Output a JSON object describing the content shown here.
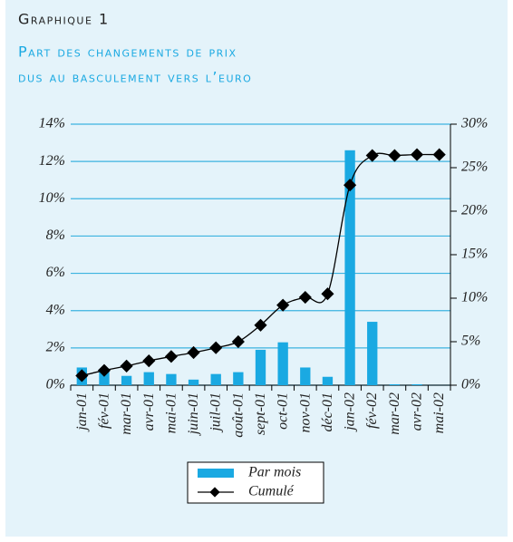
{
  "chart_data": {
    "type": "bar_line",
    "title": "Graphique 1",
    "subtitle": [
      "Part des changements de prix",
      "dus au basculement vers l’euro"
    ],
    "categories": [
      "jan-01",
      "fév-01",
      "mar-01",
      "avr-01",
      "mai-01",
      "juin-01",
      "juil-01",
      "août-01",
      "sept-01",
      "oct-01",
      "nov-01",
      "déc-01",
      "jan-02",
      "fév-02",
      "mar-02",
      "avr-02",
      "mai-02"
    ],
    "series": [
      {
        "name": "Par mois",
        "type": "bar",
        "color": "#1aa9e2",
        "axis": "y",
        "values": [
          0.95,
          0.75,
          0.5,
          0.7,
          0.6,
          0.3,
          0.6,
          0.7,
          1.9,
          2.3,
          0.95,
          0.45,
          12.6,
          3.4,
          0.05,
          0.05,
          0
        ]
      },
      {
        "name": "Cumulé",
        "type": "line",
        "color": "#000000",
        "axis": "y2",
        "values": [
          1.1,
          1.7,
          2.2,
          2.8,
          3.3,
          3.75,
          4.3,
          5.0,
          6.9,
          9.2,
          10.1,
          10.5,
          23.0,
          26.4,
          26.4,
          26.5,
          26.5
        ]
      }
    ],
    "ylim": [
      0,
      14
    ],
    "yticks": [
      {
        "value": 0,
        "label": "0%"
      },
      {
        "value": 2,
        "label": "2%"
      },
      {
        "value": 4,
        "label": "4%"
      },
      {
        "value": 6,
        "label": "6%"
      },
      {
        "value": 8,
        "label": "8%"
      },
      {
        "value": 10,
        "label": "10%"
      },
      {
        "value": 12,
        "label": "12%"
      },
      {
        "value": 14,
        "label": "14%"
      }
    ],
    "y2lim": [
      0,
      30
    ],
    "y2ticks": [
      {
        "value": 0,
        "label": "0%"
      },
      {
        "value": 5,
        "label": "5%"
      },
      {
        "value": 10,
        "label": "10%"
      },
      {
        "value": 15,
        "label": "15%"
      },
      {
        "value": 20,
        "label": "20%"
      },
      {
        "value": 25,
        "label": "25%"
      },
      {
        "value": 30,
        "label": "30%"
      }
    ],
    "grid": true,
    "grid_color": "#3cb3e0"
  }
}
